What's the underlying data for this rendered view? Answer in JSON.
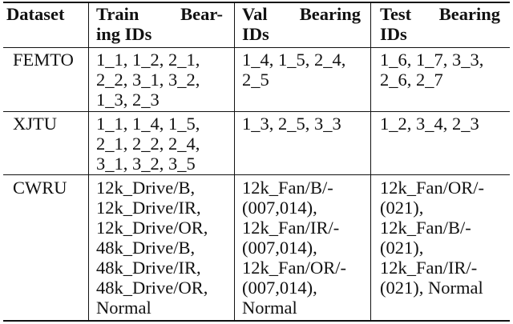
{
  "table": {
    "header": {
      "dataset": "Dataset",
      "train": [
        "Train",
        "Bear-",
        "ing IDs"
      ],
      "val": [
        "Val",
        "Bearing",
        "IDs"
      ],
      "test": [
        "Test",
        "Bearing",
        "IDs"
      ]
    },
    "rows": [
      {
        "dataset": "FEMTO",
        "train": [
          "1_1, 1_2, 2_1,",
          "2_2, 3_1, 3_2,",
          "1_3, 2_3"
        ],
        "val": [
          "1_4, 1_5, 2_4,",
          "2_5"
        ],
        "test": [
          "1_6, 1_7, 3_3,",
          "2_6, 2_7"
        ]
      },
      {
        "dataset": "XJTU",
        "train": [
          "1_1, 1_4, 1_5,",
          "2_1, 2_2, 2_4,",
          "3_1, 3_2, 3_5"
        ],
        "val": [
          "1_3, 2_5, 3_3"
        ],
        "test": [
          "1_2, 3_4, 2_3"
        ]
      },
      {
        "dataset": "CWRU",
        "train": [
          "12k_Drive/B,",
          "12k_Drive/IR,",
          "12k_Drive/OR,",
          "48k_Drive/B,",
          "48k_Drive/IR,",
          "48k_Drive/OR,",
          "Normal"
        ],
        "val": [
          "12k_Fan/B/-",
          "(007,014),",
          "12k_Fan/IR/-",
          "(007,014),",
          "12k_Fan/OR/-",
          "(007,014),",
          "Normal"
        ],
        "test": [
          "12k_Fan/OR/-",
          "(021),",
          "12k_Fan/B/-",
          "(021),",
          "12k_Fan/IR/-",
          "(021), Normal"
        ]
      }
    ]
  }
}
